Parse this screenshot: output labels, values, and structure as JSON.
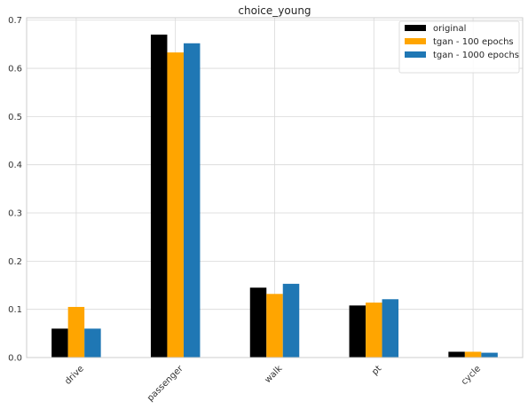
{
  "chart_data": {
    "type": "bar",
    "title": "choice_young",
    "xlabel": "",
    "ylabel": "",
    "categories": [
      "drive",
      "passenger",
      "walk",
      "pt",
      "cycle"
    ],
    "series": [
      {
        "name": "original",
        "color": "#000000",
        "values": [
          0.06,
          0.67,
          0.145,
          0.108,
          0.012
        ]
      },
      {
        "name": "tgan - 100 epochs",
        "color": "#FFA500",
        "values": [
          0.105,
          0.633,
          0.132,
          0.114,
          0.012
        ]
      },
      {
        "name": "tgan - 1000 epochs",
        "color": "#1F77B4",
        "values": [
          0.06,
          0.652,
          0.153,
          0.121,
          0.01
        ]
      }
    ],
    "ylim": [
      0,
      0.705
    ],
    "yticks": [
      "0.0",
      "0.1",
      "0.2",
      "0.3",
      "0.4",
      "0.5",
      "0.6",
      "0.7"
    ],
    "grid": true,
    "legend_position": "top-right"
  }
}
